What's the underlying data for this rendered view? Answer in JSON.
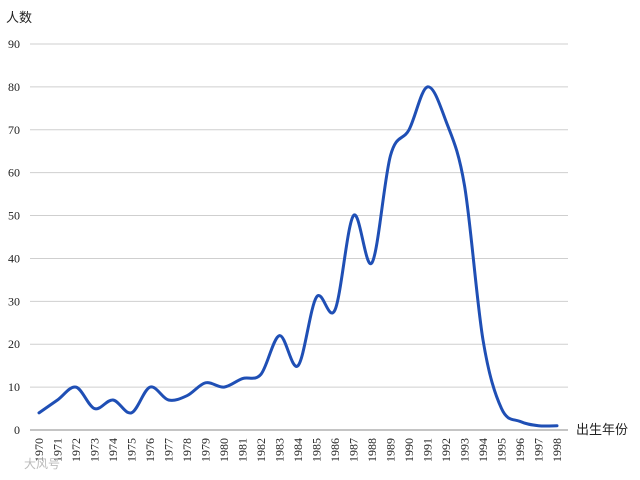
{
  "chart_data": {
    "type": "line",
    "title": "",
    "ylabel": "人数",
    "xlabel": "出生年份",
    "ylim": [
      0,
      90
    ],
    "yticks": [
      0,
      10,
      20,
      30,
      40,
      50,
      60,
      70,
      80,
      90
    ],
    "grid": true,
    "x": [
      "1970",
      "1971",
      "1972",
      "1973",
      "1974",
      "1975",
      "1976",
      "1977",
      "1978",
      "1979",
      "1980",
      "1981",
      "1982",
      "1983",
      "1984",
      "1985",
      "1986",
      "1987",
      "1988",
      "1989",
      "1990",
      "1991",
      "1992",
      "1993",
      "1994",
      "1995",
      "1996",
      "1997",
      "1998"
    ],
    "series": [
      {
        "values": [
          4,
          7,
          10,
          5,
          7,
          4,
          10,
          7,
          8,
          11,
          10,
          12,
          13,
          22,
          15,
          31,
          28,
          50,
          39,
          64,
          70,
          80,
          72,
          57,
          21,
          5,
          2,
          1,
          1
        ]
      }
    ],
    "line_color": "#1f4fb5"
  },
  "watermark": "大风号"
}
